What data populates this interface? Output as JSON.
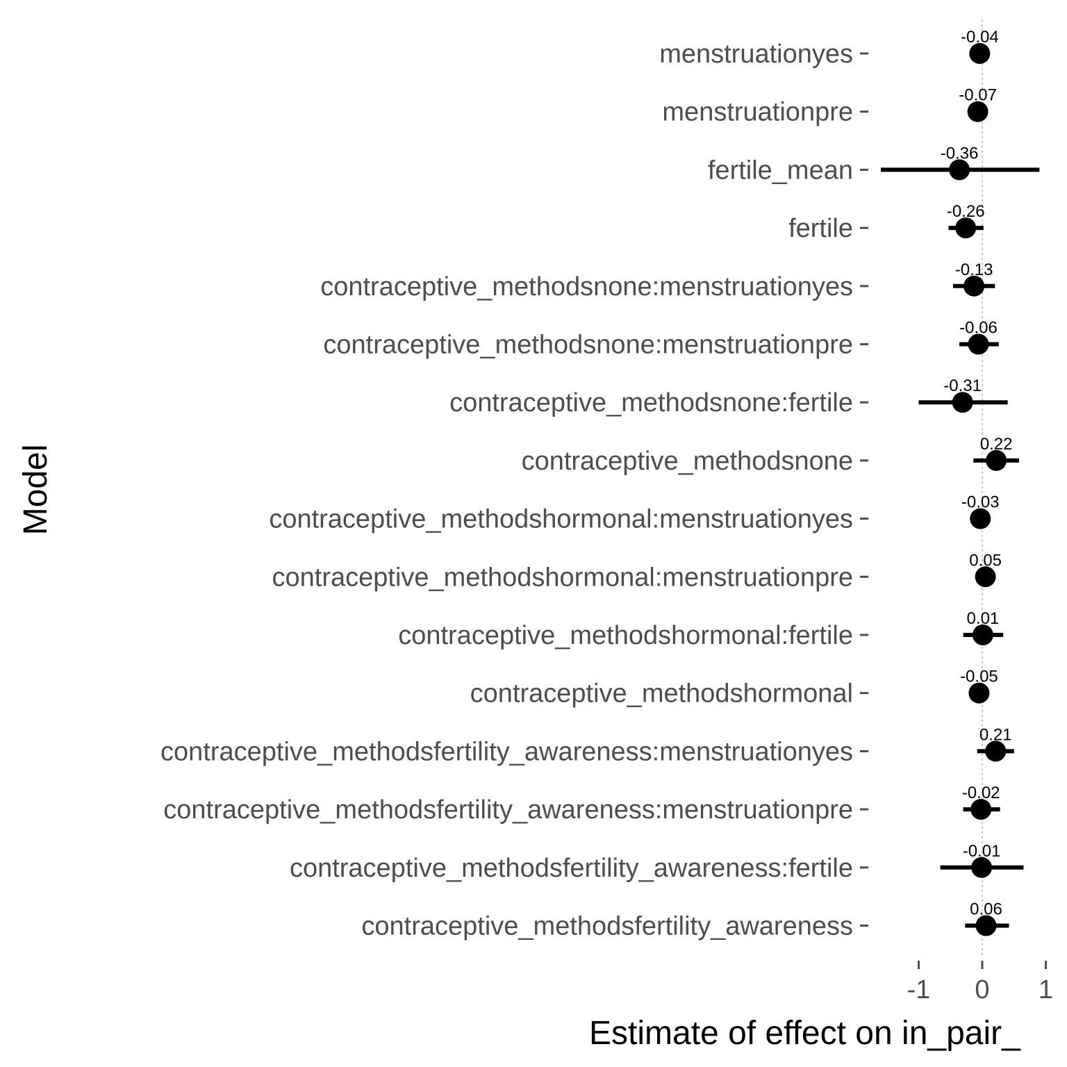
{
  "chart_data": {
    "type": "scatter",
    "orientation": "horizontal",
    "xlabel": "Estimate of effect on in_pair_",
    "ylabel": "Model",
    "xlim": [
      -1,
      1
    ],
    "xticks": [
      "-1",
      "0",
      "1"
    ],
    "vline_at": 0,
    "grid": false,
    "points": [
      {
        "term": "menstruationyes",
        "estimate": -0.04,
        "label": "-0.04",
        "ci": [
          -0.08,
          0.0
        ]
      },
      {
        "term": "menstruationpre",
        "estimate": -0.07,
        "label": "-0.07",
        "ci": [
          -0.11,
          -0.03
        ]
      },
      {
        "term": "fertile_mean",
        "estimate": -0.36,
        "label": "-0.36",
        "ci": [
          -1.61,
          0.9
        ]
      },
      {
        "term": "fertile",
        "estimate": -0.26,
        "label": "-0.26",
        "ci": [
          -0.53,
          0.02
        ]
      },
      {
        "term": "contraceptive_methodsnone:menstruationyes",
        "estimate": -0.13,
        "label": "-0.13",
        "ci": [
          -0.46,
          0.2
        ]
      },
      {
        "term": "contraceptive_methodsnone:menstruationpre",
        "estimate": -0.06,
        "label": "-0.06",
        "ci": [
          -0.36,
          0.26
        ]
      },
      {
        "term": "contraceptive_methodsnone:fertile",
        "estimate": -0.31,
        "label": "-0.31",
        "ci": [
          -1.0,
          0.4
        ]
      },
      {
        "term": "contraceptive_methodsnone",
        "estimate": 0.22,
        "label": "0.22",
        "ci": [
          -0.14,
          0.58
        ]
      },
      {
        "term": "contraceptive_methodshormonal:menstruationyes",
        "estimate": -0.03,
        "label": "-0.03",
        "ci": [
          -0.07,
          0.01
        ]
      },
      {
        "term": "contraceptive_methodshormonal:menstruationpre",
        "estimate": 0.05,
        "label": "0.05",
        "ci": [
          0.01,
          0.09
        ]
      },
      {
        "term": "contraceptive_methodshormonal:fertile",
        "estimate": 0.01,
        "label": "0.01",
        "ci": [
          -0.3,
          0.33
        ]
      },
      {
        "term": "contraceptive_methodshormonal",
        "estimate": -0.05,
        "label": "-0.05",
        "ci": [
          -0.2,
          0.1
        ]
      },
      {
        "term": "contraceptive_methodsfertility_awareness:menstruationyes",
        "estimate": 0.21,
        "label": "0.21",
        "ci": [
          -0.08,
          0.5
        ]
      },
      {
        "term": "contraceptive_methodsfertility_awareness:menstruationpre",
        "estimate": -0.02,
        "label": "-0.02",
        "ci": [
          -0.3,
          0.28
        ]
      },
      {
        "term": "contraceptive_methodsfertility_awareness:fertile",
        "estimate": -0.01,
        "label": "-0.01",
        "ci": [
          -0.66,
          0.65
        ]
      },
      {
        "term": "contraceptive_methodsfertility_awareness",
        "estimate": 0.06,
        "label": "0.06",
        "ci": [
          -0.27,
          0.42
        ]
      }
    ]
  }
}
